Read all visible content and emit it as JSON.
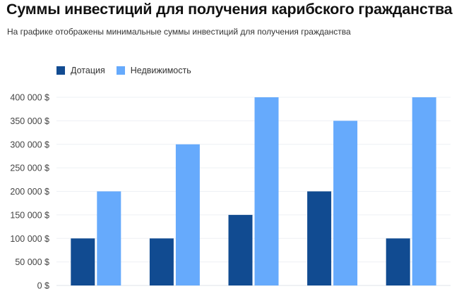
{
  "title": "Суммы инвестиций для получения карибского гражданства",
  "subtitle": "На графике отображены минимальные суммы инвестиций для получения гражданства",
  "chart_data": {
    "type": "bar",
    "title": "Суммы инвестиций для получения карибского гражданства",
    "subtitle": "На графике отображены минимальные суммы инвестиций для получения гражданства",
    "xlabel": "",
    "ylabel": "",
    "ylim": [
      0,
      400000
    ],
    "yticks": [
      0,
      50000,
      100000,
      150000,
      200000,
      250000,
      300000,
      350000,
      400000
    ],
    "ytick_labels": [
      "0 $",
      "50 000 $",
      "100 000 $",
      "150 000 $",
      "200 000 $",
      "250 000 $",
      "300 000 $",
      "350 000 $",
      "400 000 $"
    ],
    "grid": true,
    "legend_position": "top-left",
    "series": [
      {
        "name": "Дотация",
        "color": "#114b91",
        "values": [
          100000,
          100000,
          150000,
          200000,
          100000
        ]
      },
      {
        "name": "Недвижимость",
        "color": "#66aafc",
        "values": [
          200000,
          300000,
          400000,
          350000,
          400000
        ]
      }
    ]
  }
}
